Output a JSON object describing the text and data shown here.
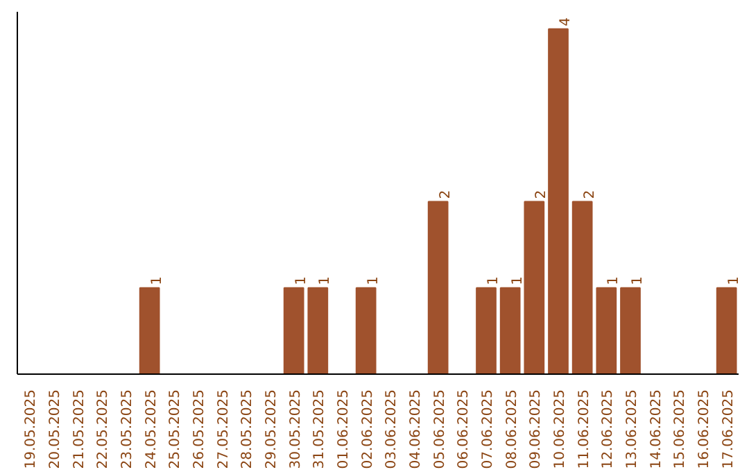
{
  "chart_data": {
    "type": "bar",
    "categories": [
      "19.05.2025",
      "20.05.2025",
      "21.05.2025",
      "22.05.2025",
      "23.05.2025",
      "24.05.2025",
      "25.05.2025",
      "26.05.2025",
      "27.05.2025",
      "28.05.2025",
      "29.05.2025",
      "30.05.2025",
      "31.05.2025",
      "01.06.2025",
      "02.06.2025",
      "03.06.2025",
      "04.06.2025",
      "05.06.2025",
      "06.06.2025",
      "07.06.2025",
      "08.06.2025",
      "09.06.2025",
      "10.06.2025",
      "11.06.2025",
      "12.06.2025",
      "13.06.2025",
      "14.06.2025",
      "15.06.2025",
      "16.06.2025",
      "17.06.2025"
    ],
    "values": [
      0,
      0,
      0,
      0,
      0,
      1,
      0,
      0,
      0,
      0,
      0,
      1,
      1,
      0,
      1,
      0,
      0,
      2,
      0,
      1,
      1,
      2,
      4,
      2,
      1,
      1,
      0,
      0,
      0,
      1
    ],
    "value_labels": [
      null,
      null,
      null,
      null,
      null,
      "1",
      null,
      null,
      null,
      null,
      null,
      "1",
      "1",
      null,
      "1",
      null,
      null,
      "2",
      null,
      "1",
      "1",
      "2",
      "4",
      "2",
      "1",
      "1",
      null,
      null,
      null,
      "1"
    ],
    "color": "#a0522d",
    "grid": false,
    "tick_labels": "x"
  }
}
